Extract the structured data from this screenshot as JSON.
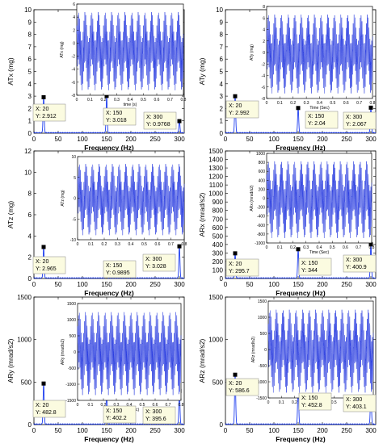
{
  "chart_data": [
    {
      "type": "line",
      "ylabel": "ATx (mg)",
      "xlabel": "Frequency (Hz)",
      "xlim": [
        0,
        310
      ],
      "ylim": [
        0,
        10
      ],
      "xticks": [
        0,
        50,
        100,
        150,
        200,
        250,
        300
      ],
      "yticks": [
        0,
        1,
        2,
        3,
        4,
        5,
        6,
        7,
        8,
        9,
        10
      ],
      "peaks": [
        {
          "x": 20,
          "y": 2.912
        },
        {
          "x": 150,
          "y": 3.018
        },
        {
          "x": 300,
          "y": 0.9768
        }
      ],
      "datatips": [
        {
          "line1": "X: 20",
          "line2": "Y: 2.912"
        },
        {
          "line1": "X: 150",
          "line2": "Y: 3.018"
        },
        {
          "line1": "X: 300",
          "line2": "Y: 0.9768"
        }
      ],
      "inset": {
        "ylabel": "ATx (mg)",
        "xlabel": "time (s)",
        "xlim": [
          0,
          0.8
        ],
        "ylim": [
          -8,
          6
        ],
        "xticks": [
          "0",
          "0.1",
          "0.2",
          "0.3",
          "0.4",
          "0.5",
          "0.6",
          "0.7",
          "0.8"
        ],
        "yticks": [
          "-8",
          "-6",
          "-4",
          "-2",
          "0",
          "2",
          "4",
          "6"
        ]
      }
    },
    {
      "type": "line",
      "ylabel": "ATy (mg)",
      "xlabel": "Frequency (Hz)",
      "xlim": [
        0,
        310
      ],
      "ylim": [
        0,
        10
      ],
      "xticks": [
        0,
        50,
        100,
        150,
        200,
        250,
        300
      ],
      "yticks": [
        0,
        1,
        2,
        3,
        4,
        5,
        6,
        7,
        8,
        9,
        10
      ],
      "peaks": [
        {
          "x": 20,
          "y": 2.992
        },
        {
          "x": 150,
          "y": 2.04
        },
        {
          "x": 300,
          "y": 2.067
        }
      ],
      "datatips": [
        {
          "line1": "X: 20",
          "line2": "Y: 2.992"
        },
        {
          "line1": "X: 150",
          "line2": "Y: 2.04"
        },
        {
          "line1": "X: 300",
          "line2": "Y: 2.067"
        }
      ],
      "inset": {
        "ylabel": "ATy (mg)",
        "xlabel": "Time (Sec)",
        "xlim": [
          0,
          0.8
        ],
        "ylim": [
          -8,
          8
        ],
        "xticks": [
          "0",
          "0.1",
          "0.2",
          "0.3",
          "0.4",
          "0.5",
          "0.6",
          "0.7",
          "0.8"
        ],
        "yticks": [
          "-8",
          "-6",
          "-4",
          "-2",
          "0",
          "2",
          "4",
          "6",
          "8"
        ]
      }
    },
    {
      "type": "line",
      "ylabel": "ATz (mg)",
      "xlabel": "Frequency (Hz)",
      "xlim": [
        0,
        310
      ],
      "ylim": [
        0,
        12
      ],
      "xticks": [
        0,
        50,
        100,
        150,
        200,
        250,
        300
      ],
      "yticks": [
        0,
        2,
        4,
        6,
        8,
        10,
        12
      ],
      "peaks": [
        {
          "x": 20,
          "y": 2.965
        },
        {
          "x": 150,
          "y": 0.9895
        },
        {
          "x": 300,
          "y": 3.028
        }
      ],
      "datatips": [
        {
          "line1": "X: 20",
          "line2": "Y: 2.965"
        },
        {
          "line1": "X: 150",
          "line2": "Y: 0.9895"
        },
        {
          "line1": "X: 300",
          "line2": "Y: 3.028"
        }
      ],
      "inset": {
        "ylabel": "ATz (mg)",
        "xlabel": "",
        "xlim": [
          0,
          0.8
        ],
        "ylim": [
          -10,
          10
        ],
        "xticks": [
          "0",
          "0.1",
          "0.2",
          "0.3",
          "0.4",
          "0.5",
          "0.6",
          "0.7",
          "0.8"
        ],
        "yticks": [
          "-10",
          "-5",
          "0",
          "5",
          "10"
        ]
      }
    },
    {
      "type": "line",
      "ylabel": "ARx (mrad/s2)",
      "xlabel": "Frequency (Hz)",
      "xlim": [
        0,
        310
      ],
      "ylim": [
        0,
        1500
      ],
      "xticks": [
        0,
        50,
        100,
        150,
        200,
        250,
        300
      ],
      "yticks": [
        0,
        100,
        200,
        300,
        400,
        500,
        600,
        700,
        800,
        900,
        1000,
        1100,
        1200,
        1300,
        1400,
        1500
      ],
      "peaks": [
        {
          "x": 20,
          "y": 295.7
        },
        {
          "x": 150,
          "y": 344
        },
        {
          "x": 300,
          "y": 400.9
        }
      ],
      "datatips": [
        {
          "line1": "X: 20",
          "line2": "Y: 295.7"
        },
        {
          "line1": "X: 150",
          "line2": "Y: 344"
        },
        {
          "line1": "X: 300",
          "line2": "Y: 400.9"
        }
      ],
      "inset": {
        "ylabel": "ARx (mrad/s2)",
        "xlabel": "Time (Sec)",
        "xlim": [
          0,
          0.8
        ],
        "ylim": [
          -1000,
          1000
        ],
        "xticks": [
          "0",
          "0.1",
          "0.2",
          "0.3",
          "0.4",
          "0.5",
          "0.6",
          "0.7",
          "0.8"
        ],
        "yticks": [
          "-1000",
          "-800",
          "-600",
          "-400",
          "-200",
          "0",
          "200",
          "400",
          "600",
          "800",
          "1000"
        ]
      }
    },
    {
      "type": "line",
      "ylabel": "ARy (mrad/s2)",
      "xlabel": "Frequency (Hz)",
      "xlim": [
        0,
        310
      ],
      "ylim": [
        0,
        1500
      ],
      "xticks": [
        0,
        50,
        100,
        150,
        200,
        250,
        300
      ],
      "yticks": [
        0,
        500,
        1000,
        1500
      ],
      "peaks": [
        {
          "x": 20,
          "y": 482.8
        },
        {
          "x": 150,
          "y": 402.2
        },
        {
          "x": 300,
          "y": 395.6
        }
      ],
      "datatips": [
        {
          "line1": "X: 20",
          "line2": "Y: 482.8"
        },
        {
          "line1": "X: 150",
          "line2": "Y: 402.2"
        },
        {
          "line1": "X: 300",
          "line2": "Y: 395.6"
        }
      ],
      "inset": {
        "ylabel": "ARy (mrad/s2)",
        "xlabel": "Time (Sec)",
        "xlim": [
          0,
          0.8
        ],
        "ylim": [
          -1500,
          1500
        ],
        "xticks": [
          "0",
          "0.1",
          "0.2",
          "0.3",
          "0.4",
          "0.5",
          "0.6",
          "0.7",
          "0.8"
        ],
        "yticks": [
          "-1500",
          "-1000",
          "-500",
          "0",
          "500",
          "1000",
          "1500"
        ]
      }
    },
    {
      "type": "line",
      "ylabel": "ARz (mrad/s2)",
      "xlabel": "Frequency (Hz)",
      "xlim": [
        0,
        310
      ],
      "ylim": [
        0,
        1500
      ],
      "xticks": [
        0,
        50,
        100,
        150,
        200,
        250,
        300
      ],
      "yticks": [
        0,
        500,
        1000,
        1500
      ],
      "peaks": [
        {
          "x": 20,
          "y": 586.6
        },
        {
          "x": 150,
          "y": 452.8
        },
        {
          "x": 300,
          "y": 403.1
        }
      ],
      "datatips": [
        {
          "line1": "X: 20",
          "line2": "Y: 586.6"
        },
        {
          "line1": "X: 150",
          "line2": "Y: 452.8"
        },
        {
          "line1": "X: 300",
          "line2": "Y: 403.1"
        }
      ],
      "inset": {
        "ylabel": "ARz (mrad/s2)",
        "xlabel": "Time (Sec)",
        "xlim": [
          0,
          0.8
        ],
        "ylim": [
          -1500,
          1500
        ],
        "xticks": [
          "0",
          "0.1",
          "0.2",
          "0.3",
          "0.4",
          "0.5",
          "0.6",
          "0.7",
          "0.8"
        ],
        "yticks": [
          "-1500",
          "-1000",
          "-500",
          "0",
          "500",
          "1000",
          "1500"
        ]
      }
    }
  ],
  "colors": {
    "series": "#1f3ff0",
    "inset_fill": "#2a3de0",
    "datatip_bg": "#fbfbe0",
    "marker": "#000000",
    "axis": "#000000"
  }
}
